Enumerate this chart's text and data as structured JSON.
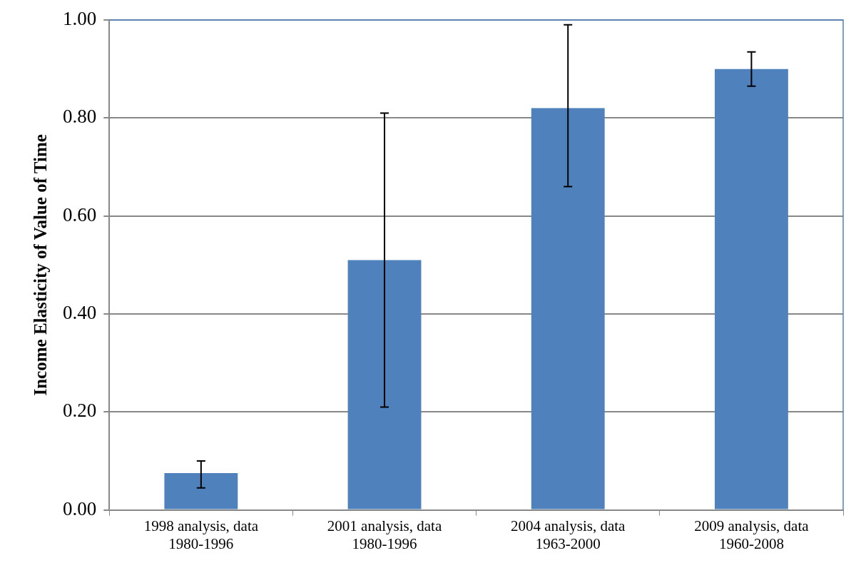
{
  "chart_data": {
    "type": "bar",
    "ylabel": "Income Elasticity of Value of Time",
    "categories": [
      "1998 analysis, data\n1980-1996",
      "2001 analysis, data\n1980-1996",
      "2004 analysis, data\n1963-2000",
      "2009 analysis, data\n1960-2008"
    ],
    "values": [
      0.075,
      0.51,
      0.82,
      0.9
    ],
    "color": "#4f81bd",
    "errors": [
      [
        0.045,
        0.1
      ],
      [
        0.21,
        0.81
      ],
      [
        0.66,
        0.99
      ],
      [
        0.865,
        0.935
      ]
    ],
    "ylim": [
      0,
      1
    ],
    "yticks": [
      {
        "value": 0,
        "label": "0.00"
      },
      {
        "value": 0.2,
        "label": "0.20"
      },
      {
        "value": 0.4,
        "label": "0.40"
      },
      {
        "value": 0.6,
        "label": "0.60"
      },
      {
        "value": 0.8,
        "label": "0.80"
      },
      {
        "value": 1,
        "label": "1.00"
      }
    ],
    "grid": "y"
  }
}
